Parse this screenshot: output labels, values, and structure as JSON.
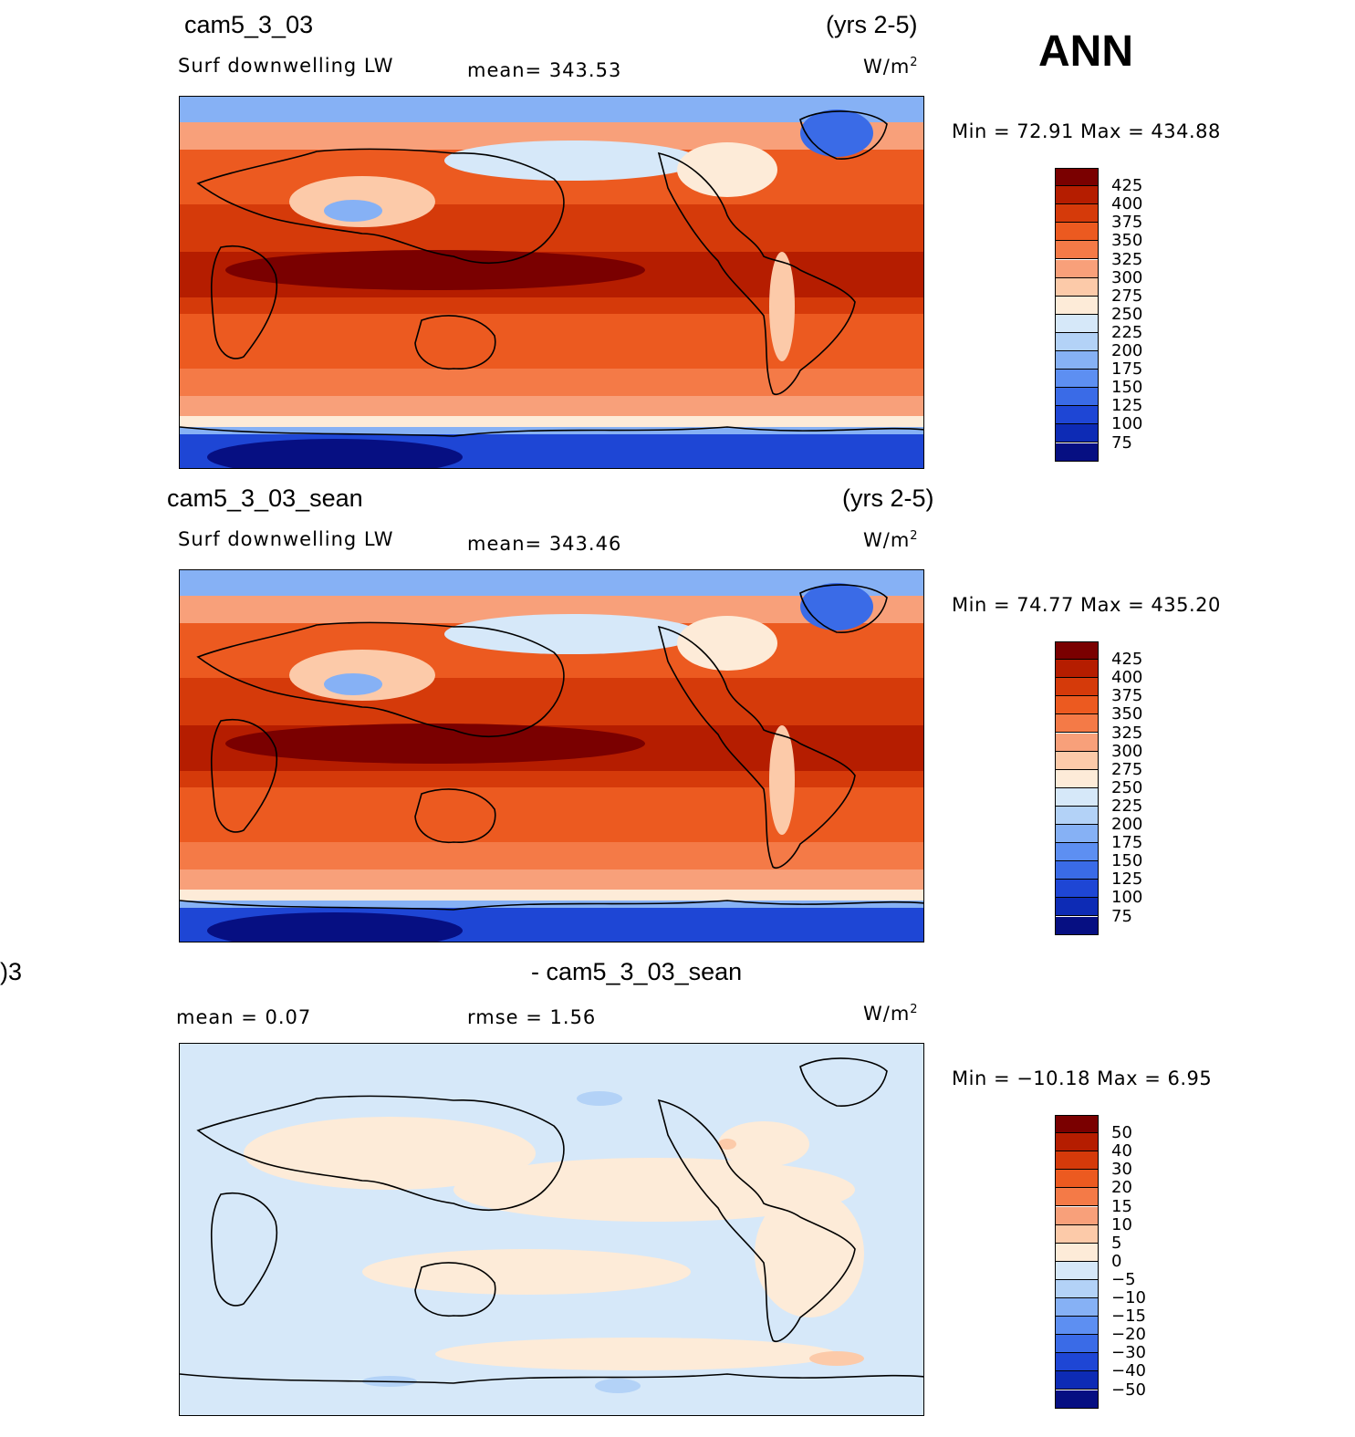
{
  "season": "ANN",
  "panels": [
    {
      "case": "cam5_3_03",
      "years": "(yrs 2-5)",
      "variable": "Surf downwelling LW",
      "stat1": "mean= 343.53",
      "stat2": "",
      "units_base": "W/m",
      "units_exp": "2",
      "minmax": "Min =   72.91  Max  =  434.88",
      "kind": "abs"
    },
    {
      "case": "cam5_3_03_sean",
      "years": "(yrs 2-5)",
      "variable": "Surf downwelling LW",
      "stat1": "mean= 343.46",
      "stat2": "",
      "units_base": "W/m",
      "units_exp": "2",
      "minmax": "Min =   74.77  Max  =  435.20",
      "kind": "abs"
    },
    {
      "case": ")3",
      "years": "- cam5_3_03_sean",
      "variable": "mean =     0.07",
      "stat1": "rmse =     1.56",
      "stat2": "",
      "units_base": "W/m",
      "units_exp": "2",
      "minmax": "Min = −10.18  Max =     6.95",
      "kind": "diff"
    }
  ],
  "colorbar_abs": {
    "labels": [
      "425",
      "400",
      "375",
      "350",
      "325",
      "300",
      "275",
      "250",
      "225",
      "200",
      "175",
      "150",
      "125",
      "100",
      "75"
    ],
    "colors": [
      "#7a0000",
      "#b51d00",
      "#d53a0a",
      "#ec5a20",
      "#f47a47",
      "#f8a07a",
      "#fccaa9",
      "#fdebd8",
      "#d6e8f9",
      "#b3d2f7",
      "#86b1f5",
      "#5d8ff2",
      "#3a6be7",
      "#1e46d5",
      "#0d2bb5",
      "#060f82"
    ]
  },
  "colorbar_diff": {
    "labels": [
      "50",
      "40",
      "30",
      "20",
      "15",
      "10",
      "5",
      "0",
      "−5",
      "−10",
      "−15",
      "−20",
      "−30",
      "−40",
      "−50"
    ],
    "colors": [
      "#7a0000",
      "#b51d00",
      "#d53a0a",
      "#ec5a20",
      "#f47a47",
      "#f8a07a",
      "#fccaa9",
      "#fdebd8",
      "#d6e8f9",
      "#b3d2f7",
      "#86b1f5",
      "#5d8ff2",
      "#3a6be7",
      "#1e46d5",
      "#0d2bb5",
      "#060f82"
    ]
  }
}
